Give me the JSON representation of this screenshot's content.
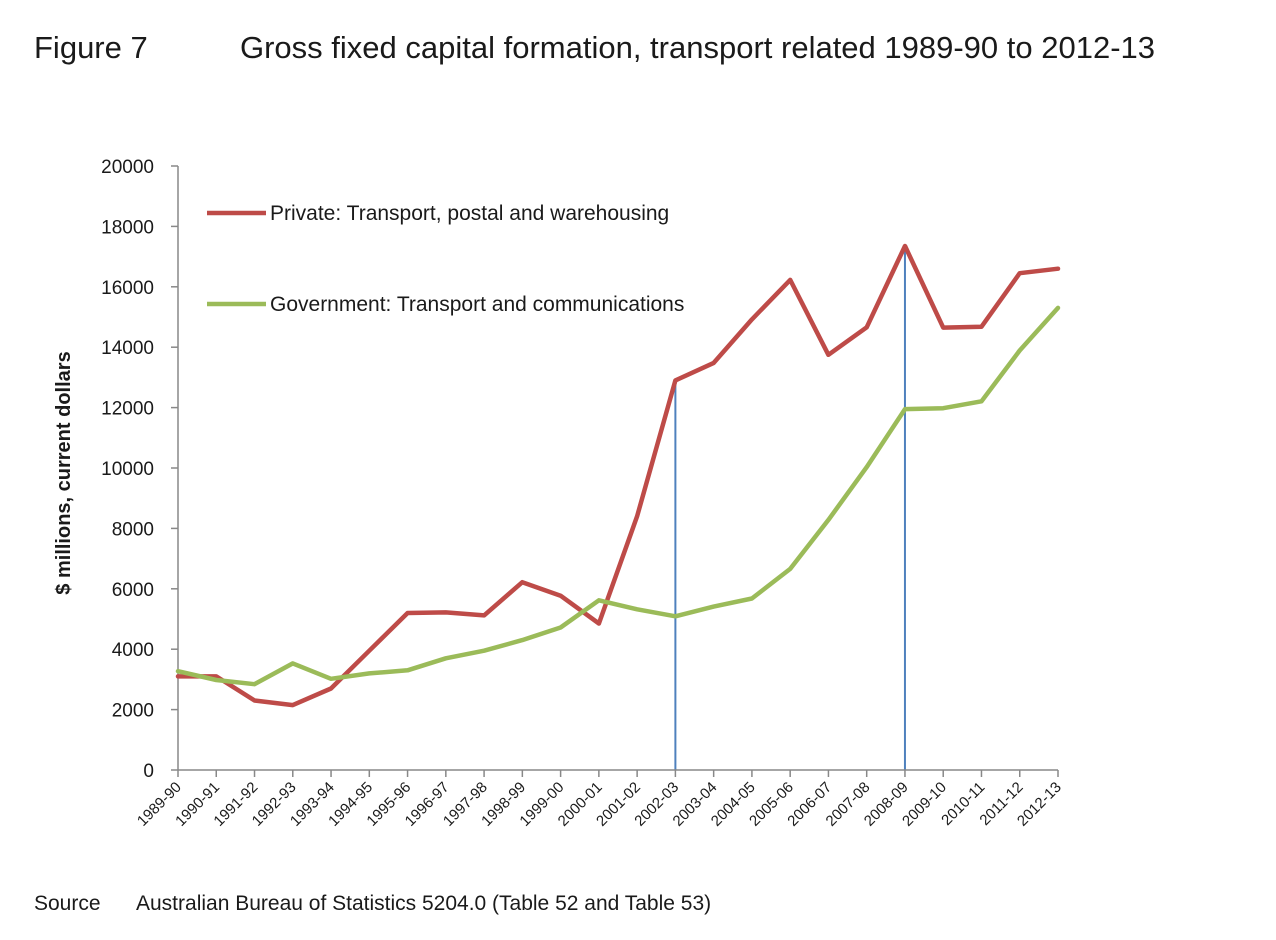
{
  "figure": {
    "label": "Figure 7",
    "title": "Gross fixed capital formation, transport related 1989-90 to 2012-13"
  },
  "source": {
    "label": "Source",
    "text": "Australian Bureau of Statistics 5204.0 (Table 52 and Table 53)"
  },
  "chart_data": {
    "type": "line",
    "title": "Gross fixed capital formation, transport related 1989-90 to 2012-13",
    "xlabel": "",
    "ylabel": "$ millions, current dollars",
    "ylim": [
      0,
      20000
    ],
    "yticks": [
      0,
      2000,
      4000,
      6000,
      8000,
      10000,
      12000,
      14000,
      16000,
      18000,
      20000
    ],
    "grid": false,
    "legend_placement": "top-left",
    "categories": [
      "1989-90",
      "1990-91",
      "1991-92",
      "1992-93",
      "1993-94",
      "1994-95",
      "1995-96",
      "1996-97",
      "1997-98",
      "1998-99",
      "1999-00",
      "2000-01",
      "2001-02",
      "2002-03",
      "2003-04",
      "2004-05",
      "2005-06",
      "2006-07",
      "2007-08",
      "2008-09",
      "2009-10",
      "2010-11",
      "2011-12",
      "2012-13"
    ],
    "series": [
      {
        "name": "Private: Transport, postal and warehousing",
        "color": "#be4b48",
        "values": [
          3100,
          3100,
          2300,
          2150,
          2700,
          3950,
          5200,
          5220,
          5120,
          6220,
          5770,
          4850,
          8400,
          12900,
          13480,
          14920,
          16230,
          13750,
          14660,
          17350,
          14650,
          14680,
          16450,
          16600
        ]
      },
      {
        "name": "Government: Transport and communications",
        "color": "#9bbb59",
        "values": [
          3270,
          2980,
          2840,
          3530,
          3020,
          3200,
          3300,
          3700,
          3950,
          4300,
          4720,
          5620,
          5320,
          5090,
          5410,
          5680,
          6660,
          8280,
          10030,
          11950,
          11980,
          12210,
          13890,
          15300
        ]
      }
    ],
    "vertical_markers": [
      {
        "category": "2002-03",
        "color": "#4f81bd"
      },
      {
        "category": "2008-09",
        "color": "#4f81bd"
      }
    ]
  }
}
